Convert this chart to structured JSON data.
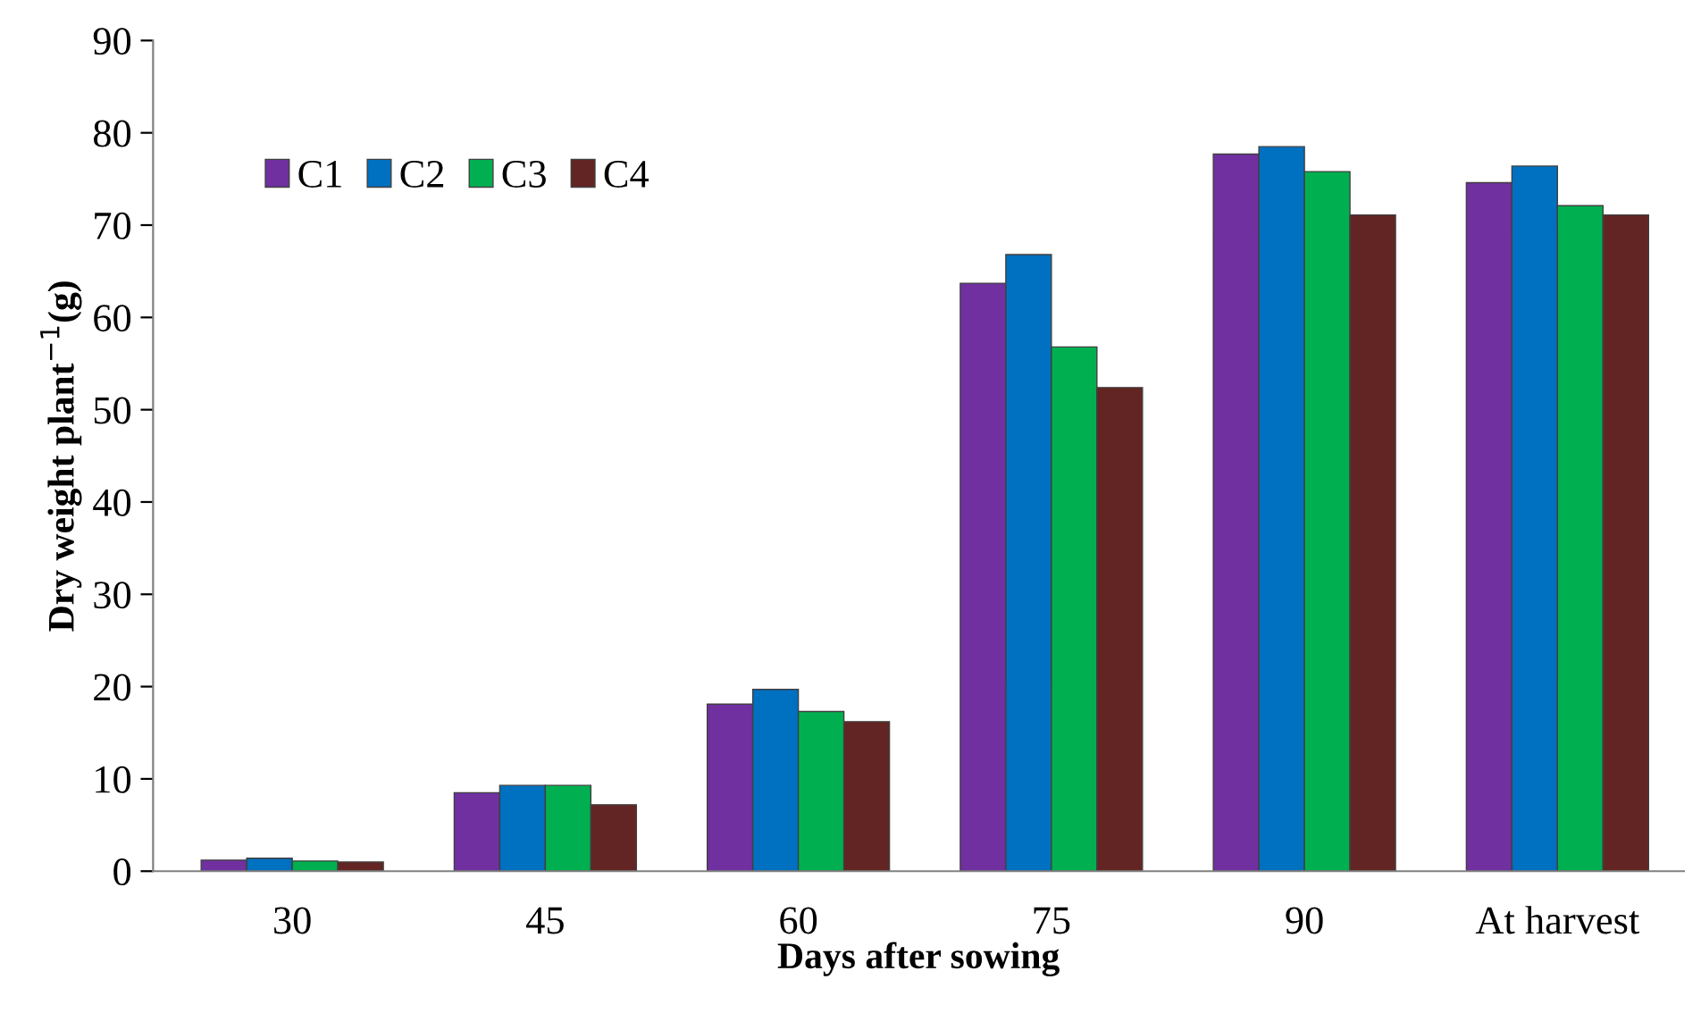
{
  "chart_data": {
    "type": "bar",
    "xlabel": "Days after sowing",
    "ylabel": "Dry weight plant$^{−1}$(g)",
    "categories": [
      "30",
      "45",
      "60",
      "75",
      "90",
      "At harvest"
    ],
    "series": [
      {
        "name": "C1",
        "color": "#7030a0",
        "values": [
          1.2,
          8.5,
          18.1,
          63.7,
          77.7,
          74.6
        ]
      },
      {
        "name": "C2",
        "color": "#0070c0",
        "values": [
          1.4,
          9.3,
          19.7,
          66.8,
          78.5,
          76.4
        ]
      },
      {
        "name": "C3",
        "color": "#00b050",
        "values": [
          1.1,
          9.3,
          17.3,
          56.8,
          75.8,
          72.1
        ]
      },
      {
        "name": "C4",
        "color": "#632523",
        "values": [
          1.0,
          7.2,
          16.2,
          52.4,
          71.1,
          71.1
        ]
      }
    ],
    "ylim": [
      0,
      90
    ],
    "yticks": [
      0,
      10,
      20,
      30,
      40,
      50,
      60,
      70,
      80,
      90
    ],
    "grid": false,
    "legend": "top left"
  }
}
